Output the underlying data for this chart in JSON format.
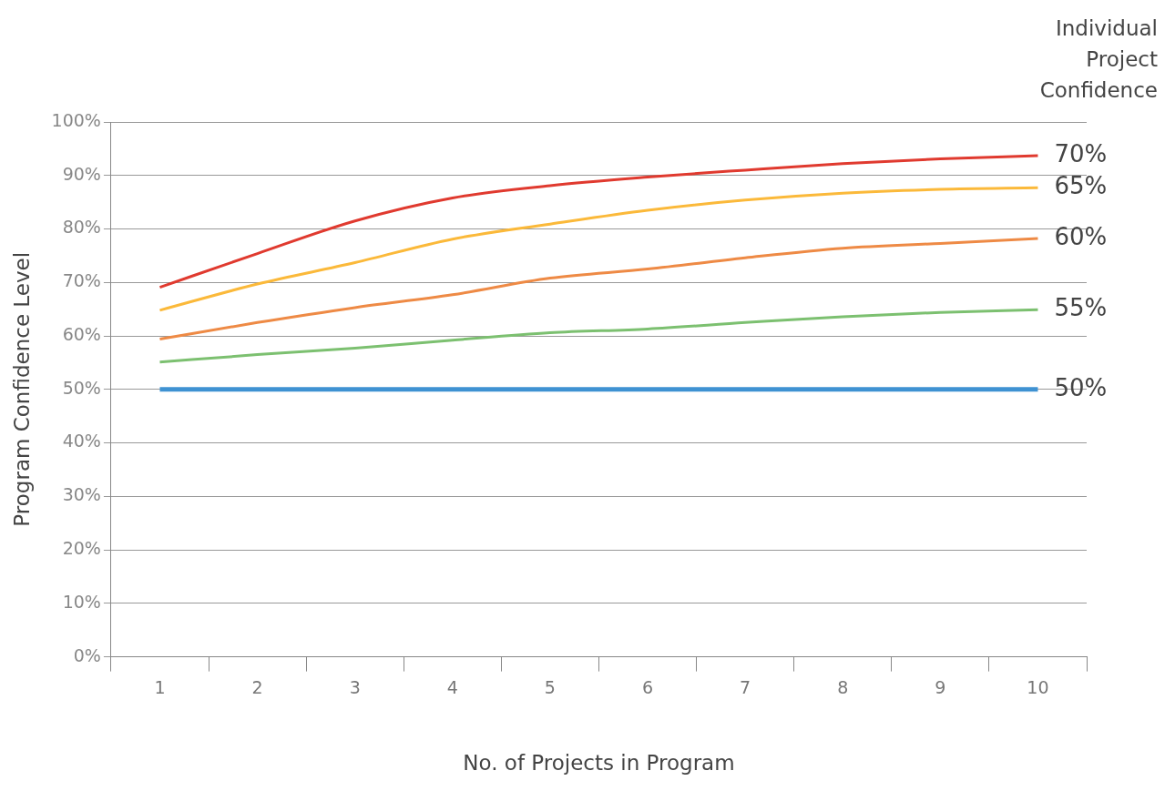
{
  "chart_data": {
    "type": "line",
    "xlabel": "No. of Projects in Program",
    "ylabel": "Program Confidence Level",
    "legend_title": "Individual Project Confidence",
    "categories": [
      "1",
      "2",
      "3",
      "4",
      "5",
      "6",
      "7",
      "8",
      "9",
      "10"
    ],
    "ylim": [
      0,
      100
    ],
    "yticks": [
      {
        "value": 0,
        "label": "0%"
      },
      {
        "value": 10,
        "label": "10%"
      },
      {
        "value": 20,
        "label": "20%"
      },
      {
        "value": 30,
        "label": "30%"
      },
      {
        "value": 40,
        "label": "40%"
      },
      {
        "value": 50,
        "label": "50%"
      },
      {
        "value": 60,
        "label": "60%"
      },
      {
        "value": 70,
        "label": "70%"
      },
      {
        "value": 80,
        "label": "80%"
      },
      {
        "value": 90,
        "label": "90%"
      },
      {
        "value": 100,
        "label": "100%"
      }
    ],
    "grid": "y",
    "legend": "right",
    "marker": "none",
    "line_style": "solid",
    "series": [
      {
        "name": "70%",
        "color": "#e03a2f",
        "values": [
          69.1,
          75.4,
          81.5,
          85.8,
          88.1,
          89.7,
          91.0,
          92.2,
          93.1,
          93.7
        ]
      },
      {
        "name": "65%",
        "color": "#fbb93a",
        "values": [
          64.8,
          69.7,
          73.7,
          78.1,
          80.9,
          83.5,
          85.4,
          86.7,
          87.4,
          87.7
        ]
      },
      {
        "name": "60%",
        "color": "#ee8a45",
        "values": [
          59.4,
          62.5,
          65.3,
          67.7,
          70.8,
          72.5,
          74.6,
          76.4,
          77.3,
          78.2
        ]
      },
      {
        "name": "55%",
        "color": "#7cc070",
        "values": [
          55.1,
          56.5,
          57.7,
          59.2,
          60.6,
          61.3,
          62.5,
          63.6,
          64.4,
          64.9
        ]
      },
      {
        "name": "50%",
        "color": "#3f92d2",
        "values": [
          50,
          50,
          50,
          50,
          50,
          50,
          50,
          50,
          50,
          50
        ]
      }
    ]
  }
}
